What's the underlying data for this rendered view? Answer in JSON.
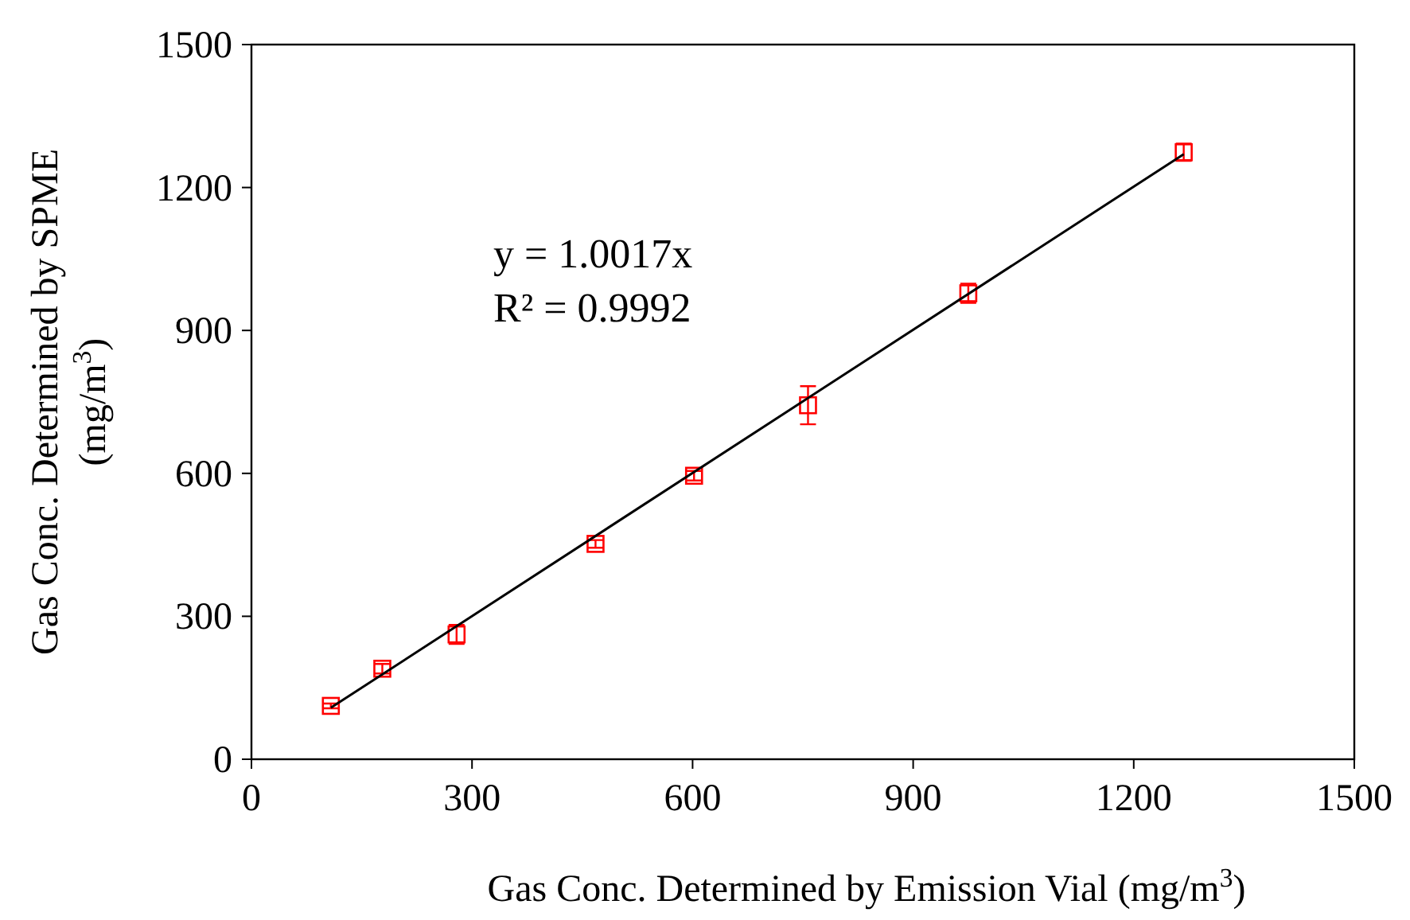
{
  "chart_data": {
    "type": "scatter",
    "xlabel": "Gas Conc. Determined by Emission Vial (mg/m$^{3}$)",
    "ylabel": "Gas Conc. Determined by SPME (mg/m$^{3}$)",
    "xlim": [
      0,
      1500
    ],
    "ylim": [
      0,
      1500
    ],
    "xticks": [
      0,
      300,
      600,
      900,
      1200,
      1500
    ],
    "yticks": [
      0,
      300,
      600,
      900,
      1200,
      1500
    ],
    "grid": false,
    "annotations": [
      "y = 1.0017x",
      "R² = 0.9992"
    ],
    "series": [
      {
        "color": "#ff0000",
        "marker": "square",
        "x": [
          108,
          178,
          279,
          468,
          602,
          757,
          975,
          1268
        ],
        "values": [
          112,
          190,
          262,
          452,
          595,
          743,
          978,
          1274
        ],
        "errors": [
          5,
          10,
          20,
          8,
          10,
          40,
          20,
          18
        ]
      },
      {
        "type": "line",
        "color": "#000000",
        "line_style": "solid",
        "x": [
          108,
          1268
        ],
        "values": [
          108,
          1270
        ]
      }
    ]
  }
}
